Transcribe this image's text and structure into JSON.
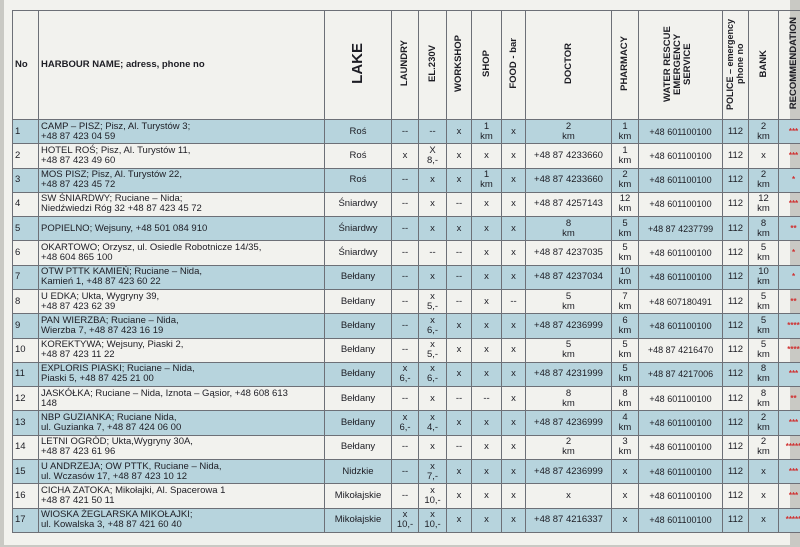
{
  "headers": {
    "no": "No",
    "name": "HARBOUR NAME; adress, phone no",
    "lake": "LAKE",
    "laundry": "LAUNDRY",
    "el230v": "EL.230V",
    "workshop": "WORKSHOP",
    "shop": "SHOP",
    "food": "FOOD - bar",
    "doctor": "DOCTOR",
    "pharmacy": "PHARMACY",
    "rescue": "WATER RESCUE EMERGENCY SERVICE",
    "police": "POLICE – emergency phone no",
    "bank": "BANK",
    "recommendation": "RECOMMENDATION"
  },
  "rows": [
    {
      "no": "1",
      "name": "CAMP – PISZ; Pisz, Al. Turystów 3;\n+48 87 423 04 59",
      "lake": "Roś",
      "laundry": "--",
      "el": "--",
      "workshop": "x",
      "shop": "1\nkm",
      "food": "x",
      "doctor": "2\nkm",
      "pharmacy": "1\nkm",
      "rescue": "+48 601100100",
      "police": "112",
      "bank": "2\nkm",
      "rec": "***"
    },
    {
      "no": "2",
      "name": "HOTEL ROŚ; Pisz, Al. Turystów 11,\n+48 87 423 49 60",
      "lake": "Roś",
      "laundry": "x",
      "el": "X\n8,-",
      "workshop": "x",
      "shop": "x",
      "food": "x",
      "doctor": "+48 87 4233660",
      "pharmacy": "1\nkm",
      "rescue": "+48 601100100",
      "police": "112",
      "bank": "x",
      "rec": "***"
    },
    {
      "no": "3",
      "name": "MOS PISZ; Pisz, Al. Turystów 22,\n+48 87 423 45 72",
      "lake": "Roś",
      "laundry": "--",
      "el": "x",
      "workshop": "x",
      "shop": "1\nkm",
      "food": "x",
      "doctor": "+48 87 4233660",
      "pharmacy": "2\nkm",
      "rescue": "+48 601100100",
      "police": "112",
      "bank": "2\nkm",
      "rec": "*"
    },
    {
      "no": "4",
      "name": "SW ŚNIARDWY; Ruciane – Nida;\nNiedźwiedzi Róg 32 +48 87 423 45 72",
      "lake": "Śniardwy",
      "laundry": "--",
      "el": "x",
      "workshop": "--",
      "shop": "x",
      "food": "x",
      "doctor": "+48 87 4257143",
      "pharmacy": "12\nkm",
      "rescue": "+48 601100100",
      "police": "112",
      "bank": "12\nkm",
      "rec": "***"
    },
    {
      "no": "5",
      "name": "POPIELNO; Wejsuny, +48 501 084 910",
      "lake": "Śniardwy",
      "laundry": "--",
      "el": "x",
      "workshop": "x",
      "shop": "x",
      "food": "x",
      "doctor": "8\nkm",
      "pharmacy": "5\nkm",
      "rescue": "+48 87 4237799",
      "police": "112",
      "bank": "8\nkm",
      "rec": "**"
    },
    {
      "no": "6",
      "name": "OKARTOWO; Orzysz, ul. Osiedle Robotnicze 14/35,\n+48 604 865 100",
      "lake": "Śniardwy",
      "laundry": "--",
      "el": "--",
      "workshop": "--",
      "shop": "x",
      "food": "x",
      "doctor": "+48 87 4237035",
      "pharmacy": "5\nkm",
      "rescue": "+48 601100100",
      "police": "112",
      "bank": "5\nkm",
      "rec": "*"
    },
    {
      "no": "7",
      "name": "OTW PTTK KAMIEŃ; Ruciane – Nida,\nKamień 1, +48 87 423 60 22",
      "lake": "Bełdany",
      "laundry": "--",
      "el": "x",
      "workshop": "--",
      "shop": "x",
      "food": "x",
      "doctor": "+48 87 4237034",
      "pharmacy": "10\nkm",
      "rescue": "+48 601100100",
      "police": "112",
      "bank": "10\nkm",
      "rec": "*"
    },
    {
      "no": "8",
      "name": "U EDKA; Ukta, Wygryny 39,\n+48 87 423 62 39",
      "lake": "Bełdany",
      "laundry": "--",
      "el": "x\n5,-",
      "workshop": "--",
      "shop": "x",
      "food": "--",
      "doctor": "5\nkm",
      "pharmacy": "7\nkm",
      "rescue": "+48 607180491",
      "police": "112",
      "bank": "5\nkm",
      "rec": "**"
    },
    {
      "no": "9",
      "name": "PAN WIERZBA; Ruciane – Nida,\nWierzba 7, +48 87 423 16 19",
      "lake": "Bełdany",
      "laundry": "--",
      "el": "x\n6,-",
      "workshop": "x",
      "shop": "x",
      "food": "x",
      "doctor": "+48 87 4236999",
      "pharmacy": "6\nkm",
      "rescue": "+48 601100100",
      "police": "112",
      "bank": "5\nkm",
      "rec": "****"
    },
    {
      "no": "10",
      "name": "KOREKTYWA; Wejsuny, Piaski 2,\n+48 87 423 11 22",
      "lake": "Bełdany",
      "laundry": "--",
      "el": "x\n5,-",
      "workshop": "x",
      "shop": "x",
      "food": "x",
      "doctor": "5\nkm",
      "pharmacy": "5\nkm",
      "rescue": "+48 87 4216470",
      "police": "112",
      "bank": "5\nkm",
      "rec": "****"
    },
    {
      "no": "11",
      "name": "EXPLORIS PIASKI; Ruciane – Nida,\nPiaski 5, +48 87 425 21 00",
      "lake": "Bełdany",
      "laundry": "x\n6,-",
      "el": "x\n6,-",
      "workshop": "x",
      "shop": "x",
      "food": "x",
      "doctor": "+48 87 4231999",
      "pharmacy": "5\nkm",
      "rescue": "+48 87 4217006",
      "police": "112",
      "bank": "8\nkm",
      "rec": "***"
    },
    {
      "no": "12",
      "name": "JASKÓŁKA; Ruciane – Nida, Iznota – Gąsior, +48 608 613\n148",
      "lake": "Bełdany",
      "laundry": "--",
      "el": "x",
      "workshop": "--",
      "shop": "--",
      "food": "x",
      "doctor": "8\nkm",
      "pharmacy": "8\nkm",
      "rescue": "+48 601100100",
      "police": "112",
      "bank": "8\nkm",
      "rec": "**"
    },
    {
      "no": "13",
      "name": "NBP GUZIANKA; Ruciane Nida,\nul. Guzianka 7, +48 87 424 06 00",
      "lake": "Bełdany",
      "laundry": "x\n6,-",
      "el": "x\n4,-",
      "workshop": "x",
      "shop": "x",
      "food": "x",
      "doctor": "+48 87 4236999",
      "pharmacy": "4\nkm",
      "rescue": "+48 601100100",
      "police": "112",
      "bank": "2\nkm",
      "rec": "***"
    },
    {
      "no": "14",
      "name": "LETNI OGRÓD; Ukta,Wygryny 30A,\n+48 87 423 61 96",
      "lake": "Bełdany",
      "laundry": "--",
      "el": "x",
      "workshop": "--",
      "shop": "x",
      "food": "x",
      "doctor": "2\nkm",
      "pharmacy": "3\nkm",
      "rescue": "+48 601100100",
      "police": "112",
      "bank": "2\nkm",
      "rec": "*****"
    },
    {
      "no": "15",
      "name": "U ANDRZEJA; OW PTTK, Ruciane – Nida,\nul. Wczasów 17, +48 87 423 10 12",
      "lake": "Nidzkie",
      "laundry": "--",
      "el": "x\n7,-",
      "workshop": "x",
      "shop": "x",
      "food": "x",
      "doctor": "+48 87 4236999",
      "pharmacy": "x",
      "rescue": "+48 601100100",
      "police": "112",
      "bank": "x",
      "rec": "***"
    },
    {
      "no": "16",
      "name": "CICHA ZATOKA; Mikołajki, Al. Spacerowa 1\n+48 87 421 50 11",
      "lake": "Mikołajskie",
      "laundry": "--",
      "el": "x\n10,-",
      "workshop": "x",
      "shop": "x",
      "food": "x",
      "doctor": "x",
      "pharmacy": "x",
      "rescue": "+48 601100100",
      "police": "112",
      "bank": "x",
      "rec": "***"
    },
    {
      "no": "17",
      "name": "WIOSKA ŻEGLARSKA MIKOŁAJKI;\nul. Kowalska 3, +48 87 421 60 40",
      "lake": "Mikołajskie",
      "laundry": "x\n10,-",
      "el": "x\n10,-",
      "workshop": "x",
      "shop": "x",
      "food": "x",
      "doctor": "+48 87 4216337",
      "pharmacy": "x",
      "rescue": "+48 601100100",
      "police": "112",
      "bank": "x",
      "rec": "*****"
    }
  ],
  "colors": {
    "shaded_row": "#b7d4dd",
    "star": "#d03030",
    "sheet": "#f2f2ee"
  }
}
